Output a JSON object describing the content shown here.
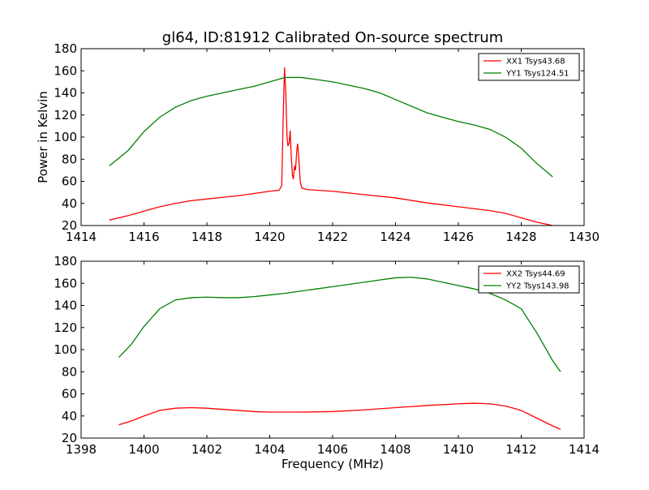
{
  "chart_data": [
    {
      "type": "line",
      "title": "gl64, ID:81912 Calibrated On-source spectrum",
      "xlabel": "",
      "ylabel": "Power in Kelvin",
      "xlim": [
        1414,
        1430
      ],
      "ylim": [
        20,
        180
      ],
      "xticks": [
        "1414",
        "1416",
        "1418",
        "1420",
        "1422",
        "1424",
        "1426",
        "1428",
        "1430"
      ],
      "yticks": [
        "20",
        "40",
        "60",
        "80",
        "100",
        "120",
        "140",
        "160",
        "180"
      ],
      "legend_position": "top-right",
      "series": [
        {
          "name": "XX1 Tsys43.68",
          "color": "#ff0000",
          "points": [
            [
              1414.9,
              25
            ],
            [
              1415.5,
              29
            ],
            [
              1416,
              33
            ],
            [
              1416.5,
              37
            ],
            [
              1417,
              40
            ],
            [
              1417.5,
              42.5
            ],
            [
              1418,
              44
            ],
            [
              1418.5,
              45.5
            ],
            [
              1419,
              47
            ],
            [
              1419.5,
              49
            ],
            [
              1420,
              51
            ],
            [
              1420.3,
              52
            ],
            [
              1420.38,
              56
            ],
            [
              1420.43,
              120
            ],
            [
              1420.47,
              163
            ],
            [
              1420.51,
              140
            ],
            [
              1420.55,
              100
            ],
            [
              1420.58,
              92
            ],
            [
              1420.62,
              95
            ],
            [
              1420.65,
              106
            ],
            [
              1420.68,
              85
            ],
            [
              1420.72,
              66
            ],
            [
              1420.75,
              62
            ],
            [
              1420.79,
              74
            ],
            [
              1420.82,
              70
            ],
            [
              1420.86,
              88
            ],
            [
              1420.89,
              94
            ],
            [
              1420.93,
              78
            ],
            [
              1420.97,
              60
            ],
            [
              1421.02,
              54
            ],
            [
              1421.2,
              52.5
            ],
            [
              1422,
              51
            ],
            [
              1423,
              48
            ],
            [
              1424,
              45
            ],
            [
              1425,
              40.5
            ],
            [
              1426,
              37
            ],
            [
              1427,
              33.5
            ],
            [
              1427.5,
              31
            ],
            [
              1428,
              27
            ],
            [
              1428.5,
              23
            ],
            [
              1429,
              20
            ]
          ]
        },
        {
          "name": "YY1 Tsys124.51",
          "color": "#008000",
          "points": [
            [
              1414.9,
              74
            ],
            [
              1415.5,
              88
            ],
            [
              1416,
              105
            ],
            [
              1416.5,
              118
            ],
            [
              1417,
              127
            ],
            [
              1417.5,
              133
            ],
            [
              1418,
              137
            ],
            [
              1418.5,
              140
            ],
            [
              1419,
              143
            ],
            [
              1419.5,
              146
            ],
            [
              1420,
              150
            ],
            [
              1420.5,
              154
            ],
            [
              1421,
              154
            ],
            [
              1421.5,
              152
            ],
            [
              1422,
              150
            ],
            [
              1422.5,
              147
            ],
            [
              1423,
              144
            ],
            [
              1423.5,
              140
            ],
            [
              1424,
              134
            ],
            [
              1424.5,
              128
            ],
            [
              1425,
              122
            ],
            [
              1425.5,
              118
            ],
            [
              1426,
              114
            ],
            [
              1426.5,
              111
            ],
            [
              1427,
              107
            ],
            [
              1427.5,
              100
            ],
            [
              1428,
              90
            ],
            [
              1428.5,
              76
            ],
            [
              1429,
              64
            ]
          ]
        }
      ]
    },
    {
      "type": "line",
      "title": "",
      "xlabel": "Frequency (MHz)",
      "ylabel": "",
      "xlim": [
        1398,
        1414
      ],
      "ylim": [
        20,
        180
      ],
      "xticks": [
        "1398",
        "1400",
        "1402",
        "1404",
        "1406",
        "1408",
        "1410",
        "1412",
        "1414"
      ],
      "yticks": [
        "20",
        "40",
        "60",
        "80",
        "100",
        "120",
        "140",
        "160",
        "180"
      ],
      "legend_position": "top-right",
      "series": [
        {
          "name": "XX2 Tsys44.69",
          "color": "#ff0000",
          "points": [
            [
              1399.2,
              32
            ],
            [
              1399.6,
              35.5
            ],
            [
              1400,
              40
            ],
            [
              1400.5,
              45
            ],
            [
              1401,
              47
            ],
            [
              1401.5,
              47.5
            ],
            [
              1402,
              47
            ],
            [
              1402.5,
              46
            ],
            [
              1403,
              45
            ],
            [
              1403.5,
              44
            ],
            [
              1404,
              43.5
            ],
            [
              1405,
              43.5
            ],
            [
              1406,
              44
            ],
            [
              1407,
              45.5
            ],
            [
              1408,
              47.5
            ],
            [
              1409,
              49.5
            ],
            [
              1410,
              51
            ],
            [
              1410.5,
              51.5
            ],
            [
              1411,
              51
            ],
            [
              1411.5,
              49
            ],
            [
              1412,
              45
            ],
            [
              1412.5,
              38
            ],
            [
              1413,
              31
            ],
            [
              1413.25,
              28
            ]
          ]
        },
        {
          "name": "YY2 Tsys143.98",
          "color": "#008000",
          "points": [
            [
              1399.2,
              93
            ],
            [
              1399.6,
              105
            ],
            [
              1400,
              121
            ],
            [
              1400.5,
              137
            ],
            [
              1401,
              145
            ],
            [
              1401.5,
              147
            ],
            [
              1402,
              147.5
            ],
            [
              1402.5,
              147
            ],
            [
              1403,
              147
            ],
            [
              1403.5,
              148
            ],
            [
              1404,
              149.5
            ],
            [
              1404.5,
              151
            ],
            [
              1405,
              153
            ],
            [
              1405.5,
              155
            ],
            [
              1406,
              157
            ],
            [
              1406.5,
              159
            ],
            [
              1407,
              161
            ],
            [
              1407.5,
              163
            ],
            [
              1408,
              165
            ],
            [
              1408.5,
              165.5
            ],
            [
              1409,
              164
            ],
            [
              1409.5,
              161
            ],
            [
              1410,
              158
            ],
            [
              1410.5,
              155
            ],
            [
              1411,
              151
            ],
            [
              1411.5,
              145
            ],
            [
              1412,
              137
            ],
            [
              1412.5,
              115
            ],
            [
              1413,
              90
            ],
            [
              1413.25,
              80
            ]
          ]
        }
      ]
    }
  ]
}
